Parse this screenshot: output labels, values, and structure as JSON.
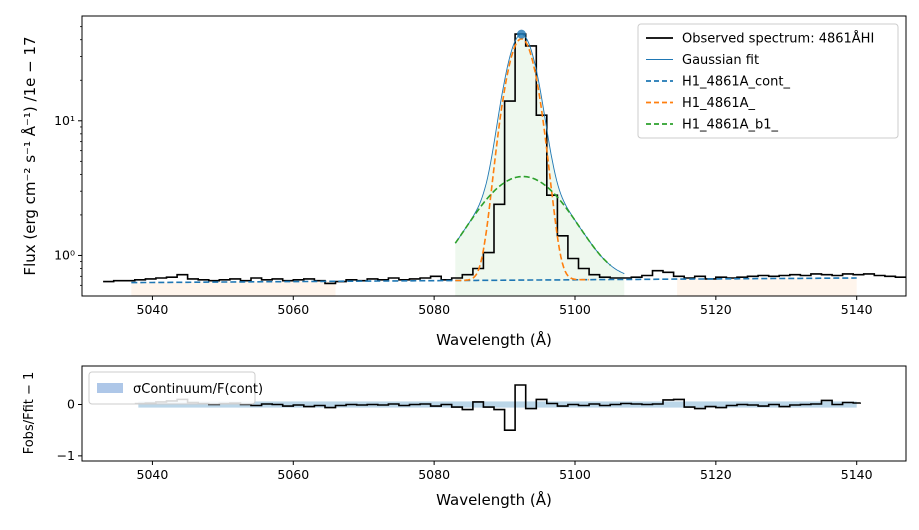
{
  "chart_data": [
    {
      "type": "line",
      "xlabel": "Wavelength (Å)",
      "ylabel": "Flux (erg cm⁻² s⁻¹ Å⁻¹) /1e − 17",
      "xlim": [
        5030,
        5147
      ],
      "ylim": [
        0.5,
        60
      ],
      "yscale": "log",
      "xticks": [
        5040,
        5060,
        5080,
        5100,
        5120,
        5140
      ],
      "yticks": [
        {
          "value": 1,
          "label": "10⁰"
        },
        {
          "value": 10,
          "label": "10¹"
        }
      ],
      "legend_location": "top-right",
      "legend": [
        {
          "label": "Observed spectrum: 4861ÅHI",
          "style": "solid",
          "color": "#000000"
        },
        {
          "label": "Gaussian fit",
          "style": "solid-thin",
          "color": "#1f77b4"
        },
        {
          "label": "H1_4861A_cont_",
          "style": "dashed",
          "color": "#1f77b4"
        },
        {
          "label": "H1_4861A_",
          "style": "dashed",
          "color": "#ff7f0e"
        },
        {
          "label": "H1_4861A_b1_",
          "style": "dashed",
          "color": "#2ca02c"
        }
      ],
      "continuum": {
        "slope": 0.0005,
        "intercept": -1.89,
        "color": "#1f77b4"
      },
      "narrow_component": {
        "amplitude": 40,
        "center": 5092.4,
        "sigma": 1.8,
        "color": "#ff7f0e"
      },
      "broad_component": {
        "amplitude": 3.2,
        "center": 5092.6,
        "sigma": 5.2,
        "color": "#2ca02c"
      },
      "peak_marker": {
        "x": 5092.4,
        "y": 44
      },
      "line_band": [
        5083,
        5107
      ],
      "continuum_bands": [
        [
          5037,
          5066
        ],
        [
          5114.5,
          5140
        ]
      ],
      "series": [
        {
          "name": "Observed spectrum: 4861ÅHI",
          "x": [
            5033.0,
            5034.5,
            5036.0,
            5037.5,
            5039.0,
            5040.5,
            5042.0,
            5043.5,
            5045.0,
            5046.5,
            5048.0,
            5049.5,
            5051.0,
            5052.5,
            5054.0,
            5055.5,
            5057.0,
            5058.5,
            5060.0,
            5061.5,
            5063.0,
            5064.5,
            5066.0,
            5067.5,
            5069.0,
            5070.5,
            5072.0,
            5073.5,
            5075.0,
            5076.5,
            5078.0,
            5079.5,
            5081.0,
            5082.5,
            5084.0,
            5085.5,
            5087.0,
            5088.5,
            5090.0,
            5091.5,
            5093.0,
            5094.5,
            5096.0,
            5097.5,
            5099.0,
            5100.5,
            5102.0,
            5103.5,
            5105.0,
            5106.5,
            5108.0,
            5109.5,
            5111.0,
            5112.5,
            5114.0,
            5115.5,
            5117.0,
            5118.5,
            5120.0,
            5121.5,
            5123.0,
            5124.5,
            5126.0,
            5127.5,
            5129.0,
            5130.5,
            5132.0,
            5133.5,
            5135.0,
            5136.5,
            5138.0,
            5139.5,
            5141.0,
            5142.5,
            5144.0,
            5145.5
          ],
          "y": [
            0.64,
            0.65,
            0.65,
            0.66,
            0.67,
            0.68,
            0.69,
            0.72,
            0.67,
            0.66,
            0.65,
            0.66,
            0.67,
            0.65,
            0.68,
            0.66,
            0.67,
            0.65,
            0.66,
            0.67,
            0.65,
            0.62,
            0.64,
            0.66,
            0.65,
            0.67,
            0.66,
            0.68,
            0.66,
            0.67,
            0.68,
            0.7,
            0.66,
            0.68,
            0.72,
            0.8,
            1.05,
            2.4,
            14.0,
            44.0,
            36.0,
            11.0,
            2.8,
            1.4,
            0.95,
            0.8,
            0.72,
            0.69,
            0.68,
            0.68,
            0.69,
            0.71,
            0.77,
            0.75,
            0.7,
            0.68,
            0.7,
            0.67,
            0.69,
            0.68,
            0.69,
            0.7,
            0.71,
            0.7,
            0.71,
            0.72,
            0.71,
            0.73,
            0.72,
            0.71,
            0.73,
            0.72,
            0.73,
            0.71,
            0.7,
            0.69
          ]
        }
      ]
    },
    {
      "type": "line",
      "xlabel": "Wavelength (Å)",
      "ylabel": "Fobs/Ffit − 1",
      "xlim": [
        5030,
        5147
      ],
      "ylim": [
        -1.1,
        0.75
      ],
      "xticks": [
        5040,
        5060,
        5080,
        5100,
        5120,
        5140
      ],
      "yticks": [
        {
          "value": 0,
          "label": "0"
        },
        {
          "value": -1,
          "label": "−1"
        }
      ],
      "legend_location": "top-left",
      "legend": [
        {
          "label": "σContinuum/F(cont)",
          "style": "patch",
          "color": "#aec7e8"
        }
      ],
      "band": {
        "x": [
          5038,
          5140
        ],
        "half_width": 0.06
      },
      "series": [
        {
          "name": "residual",
          "x": [
            5037.5,
            5039.0,
            5040.5,
            5042.0,
            5043.5,
            5045.0,
            5046.5,
            5048.0,
            5049.5,
            5051.0,
            5052.5,
            5054.0,
            5055.5,
            5057.0,
            5058.5,
            5060.0,
            5061.5,
            5063.0,
            5064.5,
            5066.0,
            5067.5,
            5069.0,
            5070.5,
            5072.0,
            5073.5,
            5075.0,
            5076.5,
            5078.0,
            5079.5,
            5081.0,
            5082.5,
            5084.0,
            5085.5,
            5087.0,
            5088.5,
            5090.0,
            5091.5,
            5093.0,
            5094.5,
            5096.0,
            5097.5,
            5099.0,
            5100.5,
            5102.0,
            5103.5,
            5105.0,
            5106.5,
            5108.0,
            5109.5,
            5111.0,
            5112.5,
            5114.0,
            5115.5,
            5117.0,
            5118.5,
            5120.0,
            5121.5,
            5123.0,
            5124.5,
            5126.0,
            5127.5,
            5129.0,
            5130.5,
            5132.0,
            5133.5,
            5135.0,
            5136.5,
            5138.0,
            5139.5,
            5140.5
          ],
          "y": [
            0.02,
            0.03,
            0.05,
            0.07,
            0.1,
            0.04,
            0.02,
            0.0,
            0.02,
            0.03,
            0.0,
            -0.02,
            0.01,
            0.0,
            -0.03,
            -0.01,
            -0.04,
            -0.02,
            -0.06,
            -0.02,
            0.0,
            -0.01,
            0.0,
            -0.01,
            0.01,
            -0.02,
            0.0,
            0.01,
            -0.03,
            0.0,
            -0.05,
            -0.1,
            0.05,
            -0.05,
            -0.1,
            -0.5,
            0.38,
            -0.08,
            0.1,
            0.02,
            -0.03,
            0.0,
            -0.02,
            0.01,
            -0.02,
            0.0,
            0.02,
            0.01,
            0.0,
            0.01,
            0.09,
            0.1,
            -0.05,
            -0.08,
            -0.04,
            -0.06,
            -0.02,
            0.0,
            -0.01,
            -0.03,
            0.0,
            -0.04,
            -0.01,
            0.0,
            0.01,
            0.08,
            0.0,
            0.04,
            0.03,
            0.04
          ]
        }
      ]
    }
  ]
}
